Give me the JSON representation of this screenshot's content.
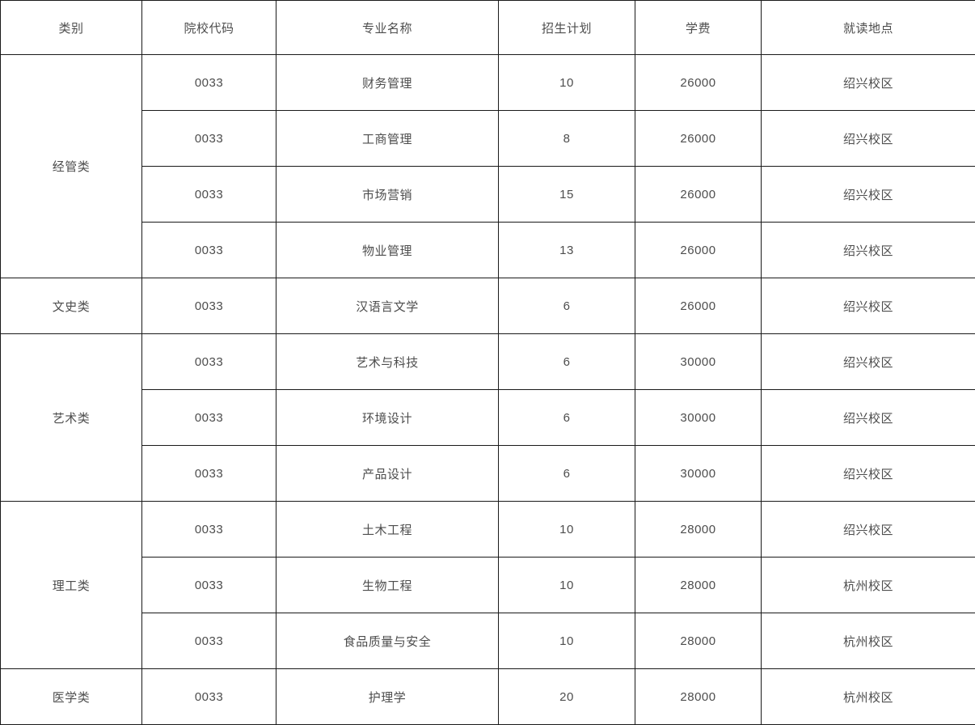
{
  "table": {
    "columns": [
      "类别",
      "院校代码",
      "专业名称",
      "招生计划",
      "学费",
      "就读地点"
    ],
    "groups": [
      {
        "category": "经管类",
        "rows": [
          {
            "code": "0033",
            "major": "财务管理",
            "plan": "10",
            "tuition": "26000",
            "location": "绍兴校区"
          },
          {
            "code": "0033",
            "major": "工商管理",
            "plan": "8",
            "tuition": "26000",
            "location": "绍兴校区"
          },
          {
            "code": "0033",
            "major": "市场营销",
            "plan": "15",
            "tuition": "26000",
            "location": "绍兴校区"
          },
          {
            "code": "0033",
            "major": "物业管理",
            "plan": "13",
            "tuition": "26000",
            "location": "绍兴校区"
          }
        ]
      },
      {
        "category": "文史类",
        "rows": [
          {
            "code": "0033",
            "major": "汉语言文学",
            "plan": "6",
            "tuition": "26000",
            "location": "绍兴校区"
          }
        ]
      },
      {
        "category": "艺术类",
        "rows": [
          {
            "code": "0033",
            "major": "艺术与科技",
            "plan": "6",
            "tuition": "30000",
            "location": "绍兴校区"
          },
          {
            "code": "0033",
            "major": "环境设计",
            "plan": "6",
            "tuition": "30000",
            "location": "绍兴校区"
          },
          {
            "code": "0033",
            "major": "产品设计",
            "plan": "6",
            "tuition": "30000",
            "location": "绍兴校区"
          }
        ]
      },
      {
        "category": "理工类",
        "rows": [
          {
            "code": "0033",
            "major": "土木工程",
            "plan": "10",
            "tuition": "28000",
            "location": "绍兴校区"
          },
          {
            "code": "0033",
            "major": "生物工程",
            "plan": "10",
            "tuition": "28000",
            "location": "杭州校区"
          },
          {
            "code": "0033",
            "major": "食品质量与安全",
            "plan": "10",
            "tuition": "28000",
            "location": "杭州校区"
          }
        ]
      },
      {
        "category": "医学类",
        "rows": [
          {
            "code": "0033",
            "major": "护理学",
            "plan": "20",
            "tuition": "28000",
            "location": "杭州校区"
          }
        ]
      }
    ],
    "colors": {
      "border": "#1a1a1a",
      "text": "#4d4d4d",
      "background": "#ffffff"
    }
  }
}
